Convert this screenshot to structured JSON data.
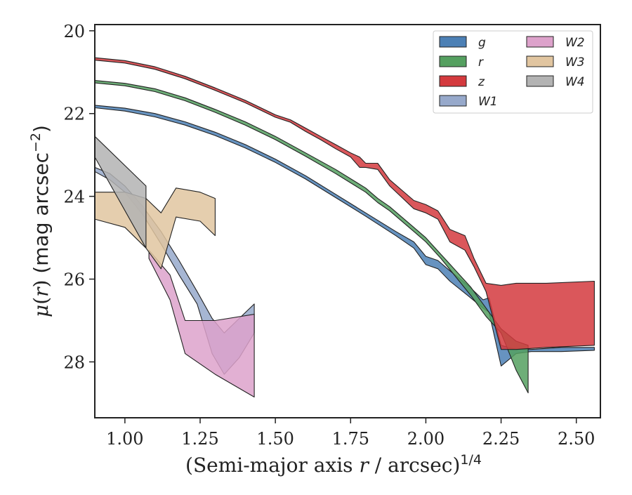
{
  "chart_data": {
    "type": "area",
    "title": "",
    "xlabel": "(Semi-major axis r / arcsec)",
    "xlabel_parts": {
      "prefix": "(Semi-major axis ",
      "var": "r",
      "mid": " / arcsec)",
      "sup": "1/4"
    },
    "ylabel_parts": {
      "mu": "μ",
      "open": "(",
      "var": "r",
      "close": ")",
      "unit": " (mag arcsec",
      "sup": "−2",
      "end": ")"
    },
    "xlim": [
      0.9,
      2.58
    ],
    "ylim": [
      29.35,
      19.85
    ],
    "y_inverted": true,
    "grid": false,
    "legend_position": "top-right",
    "legend_columns": 2,
    "x_ticks": [
      1.0,
      1.25,
      1.5,
      1.75,
      2.0,
      2.25,
      2.5
    ],
    "x_tick_labels": [
      "1.00",
      "1.25",
      "1.50",
      "1.75",
      "2.00",
      "2.25",
      "2.50"
    ],
    "y_ticks": [
      20,
      22,
      24,
      26,
      28
    ],
    "y_tick_labels": [
      "20",
      "22",
      "24",
      "26",
      "28"
    ],
    "colors": {
      "axis": "#222222",
      "band_edge": "#222222"
    },
    "series": [
      {
        "name": "g",
        "color": "#4c80b5",
        "x": [
          0.9,
          1.0,
          1.1,
          1.2,
          1.3,
          1.4,
          1.5,
          1.6,
          1.7,
          1.8,
          1.9,
          1.96,
          2.0,
          2.04,
          2.08,
          2.14,
          2.19,
          2.21,
          2.25,
          2.3,
          2.35,
          2.45,
          2.56
        ],
        "y_upper": [
          21.8,
          21.87,
          22.0,
          22.2,
          22.45,
          22.75,
          23.1,
          23.5,
          23.95,
          24.4,
          24.85,
          25.1,
          25.45,
          25.55,
          25.8,
          26.15,
          26.5,
          26.45,
          27.6,
          27.7,
          27.7,
          27.65,
          27.65
        ],
        "y_lower": [
          21.86,
          21.94,
          22.08,
          22.28,
          22.53,
          22.83,
          23.18,
          23.58,
          24.03,
          24.48,
          24.95,
          25.25,
          25.65,
          25.75,
          26.05,
          26.4,
          26.7,
          26.8,
          28.1,
          27.8,
          27.75,
          27.75,
          27.72
        ]
      },
      {
        "name": "r",
        "color": "#55a060",
        "x": [
          0.9,
          1.0,
          1.1,
          1.2,
          1.3,
          1.4,
          1.5,
          1.6,
          1.7,
          1.8,
          1.84,
          1.88,
          1.96,
          2.0,
          2.05,
          2.1,
          2.15,
          2.2,
          2.25,
          2.3,
          2.34
        ],
        "y_upper": [
          21.2,
          21.27,
          21.4,
          21.62,
          21.9,
          22.2,
          22.55,
          22.95,
          23.35,
          23.8,
          24.05,
          24.25,
          24.75,
          25.0,
          25.4,
          25.8,
          26.2,
          26.7,
          27.2,
          27.5,
          27.6
        ],
        "y_lower": [
          21.26,
          21.33,
          21.47,
          21.69,
          21.97,
          22.28,
          22.63,
          23.03,
          23.45,
          23.9,
          24.15,
          24.35,
          24.85,
          25.1,
          25.5,
          25.95,
          26.4,
          26.9,
          27.3,
          28.2,
          28.75
        ]
      },
      {
        "name": "z",
        "color": "#d43a3e",
        "x": [
          0.9,
          1.0,
          1.1,
          1.2,
          1.3,
          1.4,
          1.5,
          1.55,
          1.6,
          1.65,
          1.7,
          1.75,
          1.78,
          1.8,
          1.84,
          1.88,
          1.96,
          2.0,
          2.04,
          2.08,
          2.13,
          2.16,
          2.2,
          2.25,
          2.3,
          2.4,
          2.56
        ],
        "y_upper": [
          20.65,
          20.72,
          20.87,
          21.1,
          21.38,
          21.68,
          22.03,
          22.15,
          22.35,
          22.55,
          22.75,
          22.95,
          23.05,
          23.2,
          23.2,
          23.6,
          24.1,
          24.2,
          24.35,
          24.8,
          24.95,
          25.5,
          26.1,
          26.15,
          26.1,
          26.1,
          26.05
        ],
        "y_lower": [
          20.71,
          20.78,
          20.93,
          21.16,
          21.44,
          21.74,
          22.09,
          22.21,
          22.43,
          22.63,
          22.85,
          23.05,
          23.3,
          23.3,
          23.35,
          23.75,
          24.3,
          24.4,
          24.55,
          25.1,
          25.3,
          25.7,
          26.3,
          27.7,
          27.7,
          27.65,
          27.6
        ]
      },
      {
        "name": "W1",
        "color": "#97a9cb",
        "x": [
          0.9,
          0.95,
          1.0,
          1.06,
          1.12,
          1.18,
          1.24,
          1.29,
          1.33,
          1.38,
          1.43
        ],
        "y_upper": [
          23.3,
          23.45,
          23.75,
          24.25,
          24.85,
          25.55,
          26.3,
          26.95,
          27.3,
          26.95,
          26.6
        ],
        "y_lower": [
          23.4,
          23.6,
          23.9,
          24.45,
          25.15,
          25.9,
          26.6,
          27.8,
          28.3,
          27.9,
          27.3
        ]
      },
      {
        "name": "W2",
        "color": "#dda2cb",
        "x": [
          1.08,
          1.15,
          1.2,
          1.3,
          1.43
        ],
        "y_upper": [
          25.3,
          25.9,
          27.0,
          27.0,
          26.85
        ],
        "y_lower": [
          25.5,
          26.5,
          27.8,
          28.3,
          28.85
        ]
      },
      {
        "name": "W3",
        "color": "#e1c5a0",
        "x": [
          0.9,
          1.0,
          1.07,
          1.12,
          1.17,
          1.25,
          1.3
        ],
        "y_upper": [
          23.9,
          23.9,
          24.05,
          24.4,
          23.8,
          23.9,
          24.05
        ],
        "y_lower": [
          24.55,
          24.75,
          25.25,
          25.75,
          24.5,
          24.6,
          24.95
        ]
      },
      {
        "name": "W4",
        "color": "#b3b3b3",
        "x": [
          0.9,
          1.07
        ],
        "y_upper": [
          22.55,
          23.75
        ],
        "y_lower": [
          23.05,
          25.25
        ]
      }
    ]
  }
}
